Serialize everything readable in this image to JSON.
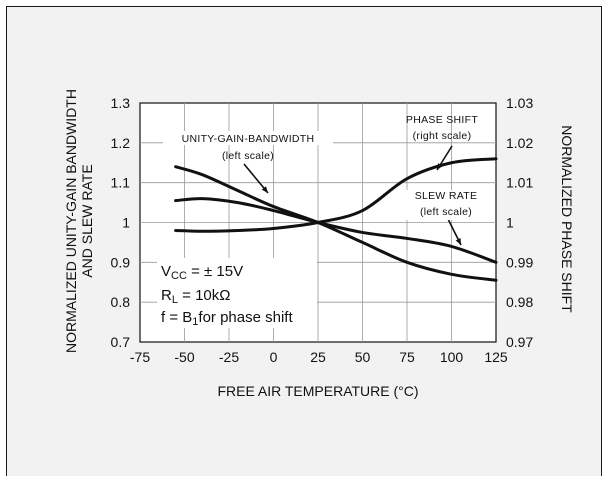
{
  "chart_data": {
    "type": "line",
    "xlabel": "FREE AIR TEMPERATURE (°C)",
    "ylabel_left_line1": "NORMALIZED UNITY-GAIN BANDWIDTH",
    "ylabel_left_line2": "AND SLEW RATE",
    "ylabel_right": "NORMALIZED PHASE SHIFT",
    "xlim": [
      -75,
      125
    ],
    "ylim_left": [
      0.7,
      1.3
    ],
    "ylim_right": [
      0.97,
      1.03
    ],
    "x_ticks": [
      "-75",
      "-50",
      "-25",
      "0",
      "25",
      "50",
      "75",
      "100",
      "125"
    ],
    "y_left_ticks": [
      "0.7",
      "0.8",
      "0.9",
      "1",
      "1.1",
      "1.2",
      "1.3"
    ],
    "y_right_ticks": [
      "0.97",
      "0.98",
      "0.99",
      "1",
      "1.01",
      "1.02",
      "1.03"
    ],
    "series": [
      {
        "name": "UNITY-GAIN-BANDWIDTH",
        "axis": "left",
        "x": [
          -55,
          -40,
          -20,
          0,
          25,
          50,
          75,
          100,
          125
        ],
        "y": [
          1.14,
          1.12,
          1.08,
          1.04,
          1.0,
          0.95,
          0.9,
          0.87,
          0.855
        ]
      },
      {
        "name": "SLEW RATE",
        "axis": "left",
        "x": [
          -55,
          -40,
          -20,
          0,
          25,
          50,
          75,
          100,
          125
        ],
        "y": [
          1.055,
          1.06,
          1.05,
          1.03,
          1.0,
          0.975,
          0.96,
          0.94,
          0.9
        ]
      },
      {
        "name": "PHASE SHIFT",
        "axis": "right",
        "x": [
          -55,
          -40,
          -20,
          0,
          25,
          50,
          75,
          100,
          125
        ],
        "y": [
          0.998,
          0.9978,
          0.998,
          0.9985,
          1.0,
          1.003,
          1.011,
          1.015,
          1.016
        ]
      }
    ],
    "callouts": {
      "ugb_line1": "UNITY-GAIN-BANDWIDTH",
      "ugb_line2": "(left scale)",
      "ps_line1": "PHASE SHIFT",
      "ps_line2": "(right scale)",
      "sr_line1": "SLEW RATE",
      "sr_line2": "(left scale)"
    },
    "conditions": {
      "vcc_prefix": "V",
      "vcc_sub": "CC",
      "vcc_value": " = ± 15V",
      "rl_prefix": "R",
      "rl_sub": "L",
      "rl_value": " = 10kΩ",
      "f_prefix": "f = B",
      "f_sub": "1",
      "f_value": "for phase shift"
    },
    "grid": true,
    "legend": "none"
  }
}
